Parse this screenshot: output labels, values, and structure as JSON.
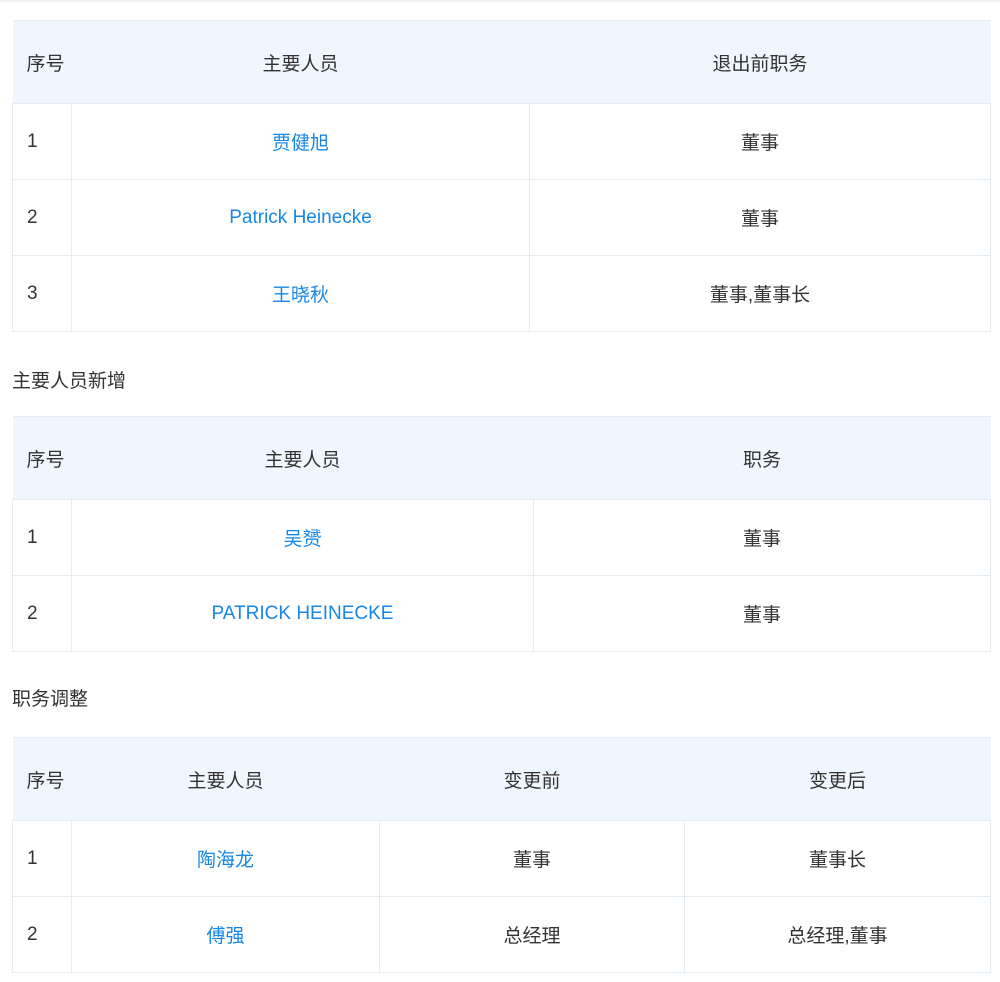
{
  "tables": [
    {
      "header": [
        "序号",
        "主要人员",
        "退出前职务"
      ],
      "rows": [
        [
          1,
          "贾健旭",
          "董事"
        ],
        [
          2,
          "Patrick Heinecke",
          "董事"
        ],
        [
          3,
          "王晓秋",
          "董事,董事长"
        ]
      ]
    },
    {
      "title": "主要人员新增",
      "header": [
        "序号",
        "主要人员",
        "职务"
      ],
      "rows": [
        [
          1,
          "吴赟",
          "董事"
        ],
        [
          2,
          "PATRICK HEINECKE",
          "董事"
        ]
      ]
    },
    {
      "title": "职务调整",
      "header": [
        "序号",
        "主要人员",
        "变更前",
        "变更后"
      ],
      "rows": [
        [
          1,
          "陶海龙",
          "董事",
          "董事长"
        ],
        [
          2,
          "傅强",
          "总经理",
          "总经理,董事"
        ]
      ]
    }
  ]
}
